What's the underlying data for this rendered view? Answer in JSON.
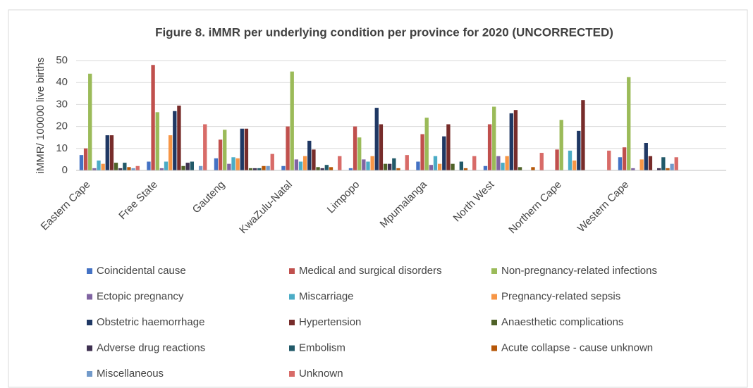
{
  "chart_data": {
    "type": "bar",
    "title": "Figure 8. iMMR per underlying condition per province for 2020 (UNCORRECTED)",
    "y_label": "iMMR/ 100000 live births",
    "categories": [
      "Eastern Cape",
      "Free State",
      "Gauteng",
      "KwaZulu-Natal",
      "Limpopo",
      "Mpumalanga",
      "North West",
      "Northern Cape",
      "Western Cape"
    ],
    "ylim": [
      0,
      50
    ],
    "yticks": [
      0,
      10,
      20,
      30,
      40,
      50
    ],
    "grid": true,
    "series": [
      {
        "name": "Coincidental cause",
        "color": "#4472c4",
        "values": [
          7,
          4,
          5.5,
          2,
          1,
          4,
          2,
          0,
          6
        ]
      },
      {
        "name": "Medical and surgical disorders",
        "color": "#c0504d",
        "values": [
          10,
          48,
          14,
          20,
          20,
          16.5,
          21,
          9.5,
          10.5
        ]
      },
      {
        "name": "Non-pregnancy-related infections",
        "color": "#9bbb59",
        "values": [
          44,
          26.5,
          18.5,
          45,
          15,
          24,
          29,
          23,
          42.5
        ]
      },
      {
        "name": "Ectopic pregnancy",
        "color": "#8064a2",
        "values": [
          1,
          1,
          3,
          5,
          5,
          2.5,
          6.5,
          0,
          1
        ]
      },
      {
        "name": "Miscarriage",
        "color": "#4bacc6",
        "values": [
          4.5,
          4,
          6,
          4,
          4,
          6.5,
          3.5,
          9,
          0
        ]
      },
      {
        "name": "Pregnancy-related sepsis",
        "color": "#f79646",
        "values": [
          3,
          16,
          5.5,
          6.5,
          6.5,
          3,
          6.5,
          4.5,
          5
        ]
      },
      {
        "name": "Obstetric haemorrhage",
        "color": "#1f3864",
        "values": [
          16,
          27,
          19,
          13.5,
          28.5,
          15.5,
          26,
          18,
          12.5
        ]
      },
      {
        "name": "Hypertension",
        "color": "#772c2a",
        "values": [
          16,
          29.5,
          19,
          9.5,
          21,
          21,
          27.5,
          32,
          6.5
        ]
      },
      {
        "name": "Anaesthetic complications",
        "color": "#4f6228",
        "values": [
          3.5,
          2,
          1,
          1.5,
          3,
          3,
          1.5,
          0,
          0
        ]
      },
      {
        "name": "Adverse drug reactions",
        "color": "#3f3151",
        "values": [
          1,
          3.5,
          1,
          1,
          3,
          0,
          0,
          0,
          1
        ]
      },
      {
        "name": "Embolism",
        "color": "#215968",
        "values": [
          3.5,
          4,
          1,
          2.5,
          5.5,
          4,
          0,
          0,
          6
        ]
      },
      {
        "name": "Acute collapse - cause unknown",
        "color": "#b65708",
        "values": [
          1.5,
          0,
          2,
          1.5,
          1,
          1,
          1.5,
          0,
          1
        ]
      },
      {
        "name": "Miscellaneous",
        "color": "#729aca",
        "values": [
          1,
          2,
          2,
          0,
          0,
          0,
          0,
          0,
          3
        ]
      },
      {
        "name": "Unknown",
        "color": "#d86b68",
        "values": [
          2,
          21,
          7.5,
          6.5,
          7,
          6.5,
          8,
          9,
          6
        ]
      }
    ]
  }
}
